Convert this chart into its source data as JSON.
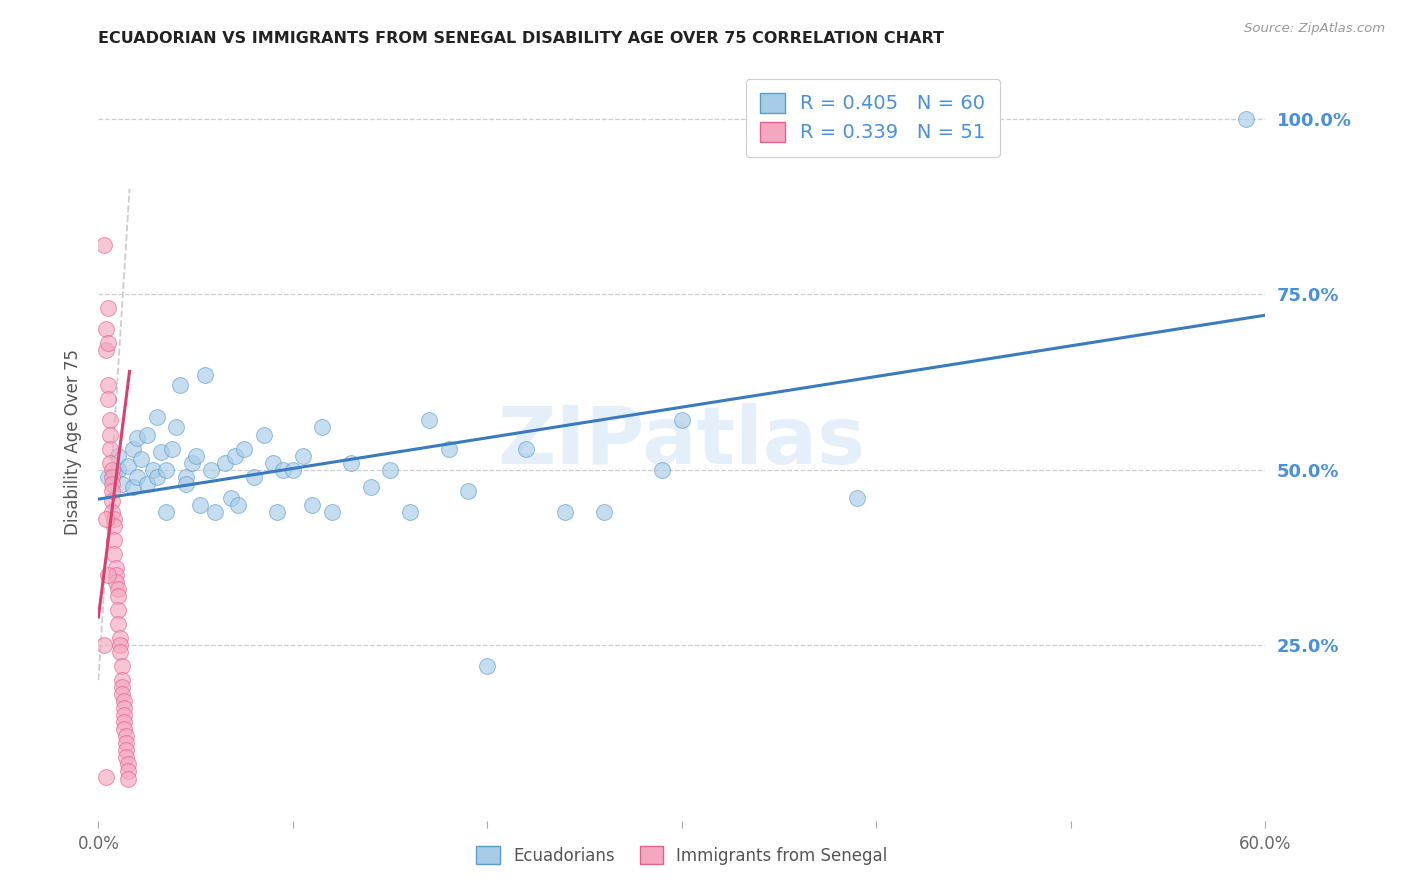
{
  "title": "ECUADORIAN VS IMMIGRANTS FROM SENEGAL DISABILITY AGE OVER 75 CORRELATION CHART",
  "source": "Source: ZipAtlas.com",
  "ylabel": "Disability Age Over 75",
  "x_min": 0.0,
  "x_max": 0.6,
  "y_min": 0.0,
  "y_max": 1.08,
  "x_ticks": [
    0.0,
    0.1,
    0.2,
    0.3,
    0.4,
    0.5,
    0.6
  ],
  "y_ticks": [
    0.0,
    0.25,
    0.5,
    0.75,
    1.0
  ],
  "y_tick_labels": [
    "",
    "25.0%",
    "50.0%",
    "75.0%",
    "100.0%"
  ],
  "watermark": "ZIPatlas",
  "legend_r1": "R = 0.405",
  "legend_n1": "N = 60",
  "legend_r2": "R = 0.339",
  "legend_n2": "N = 51",
  "blue_scatter_color": "#a8cce8",
  "blue_edge_color": "#5b9dc9",
  "pink_scatter_color": "#f4a7be",
  "pink_edge_color": "#e06090",
  "blue_line_color": "#3a7bbf",
  "pink_line_color": "#d94070",
  "ref_line_color": "#cccccc",
  "grid_color": "#cccccc",
  "right_tick_color": "#4a90d9",
  "ecuadorians_scatter": [
    [
      0.005,
      0.49
    ],
    [
      0.008,
      0.495
    ],
    [
      0.01,
      0.5
    ],
    [
      0.01,
      0.52
    ],
    [
      0.012,
      0.48
    ],
    [
      0.015,
      0.505
    ],
    [
      0.018,
      0.53
    ],
    [
      0.018,
      0.475
    ],
    [
      0.02,
      0.545
    ],
    [
      0.02,
      0.49
    ],
    [
      0.022,
      0.515
    ],
    [
      0.025,
      0.55
    ],
    [
      0.025,
      0.48
    ],
    [
      0.028,
      0.5
    ],
    [
      0.03,
      0.575
    ],
    [
      0.03,
      0.49
    ],
    [
      0.032,
      0.525
    ],
    [
      0.035,
      0.5
    ],
    [
      0.035,
      0.44
    ],
    [
      0.038,
      0.53
    ],
    [
      0.04,
      0.56
    ],
    [
      0.042,
      0.62
    ],
    [
      0.045,
      0.49
    ],
    [
      0.045,
      0.48
    ],
    [
      0.048,
      0.51
    ],
    [
      0.05,
      0.52
    ],
    [
      0.052,
      0.45
    ],
    [
      0.055,
      0.635
    ],
    [
      0.058,
      0.5
    ],
    [
      0.06,
      0.44
    ],
    [
      0.065,
      0.51
    ],
    [
      0.068,
      0.46
    ],
    [
      0.07,
      0.52
    ],
    [
      0.072,
      0.45
    ],
    [
      0.075,
      0.53
    ],
    [
      0.08,
      0.49
    ],
    [
      0.085,
      0.55
    ],
    [
      0.09,
      0.51
    ],
    [
      0.092,
      0.44
    ],
    [
      0.095,
      0.5
    ],
    [
      0.1,
      0.5
    ],
    [
      0.105,
      0.52
    ],
    [
      0.11,
      0.45
    ],
    [
      0.115,
      0.56
    ],
    [
      0.12,
      0.44
    ],
    [
      0.13,
      0.51
    ],
    [
      0.14,
      0.475
    ],
    [
      0.15,
      0.5
    ],
    [
      0.16,
      0.44
    ],
    [
      0.17,
      0.57
    ],
    [
      0.18,
      0.53
    ],
    [
      0.19,
      0.47
    ],
    [
      0.2,
      0.22
    ],
    [
      0.22,
      0.53
    ],
    [
      0.24,
      0.44
    ],
    [
      0.26,
      0.44
    ],
    [
      0.29,
      0.5
    ],
    [
      0.3,
      0.57
    ],
    [
      0.39,
      0.46
    ],
    [
      0.59,
      1.0
    ]
  ],
  "senegal_scatter": [
    [
      0.003,
      0.82
    ],
    [
      0.004,
      0.7
    ],
    [
      0.004,
      0.67
    ],
    [
      0.005,
      0.73
    ],
    [
      0.005,
      0.68
    ],
    [
      0.005,
      0.62
    ],
    [
      0.005,
      0.6
    ],
    [
      0.006,
      0.57
    ],
    [
      0.006,
      0.55
    ],
    [
      0.006,
      0.53
    ],
    [
      0.006,
      0.51
    ],
    [
      0.007,
      0.5
    ],
    [
      0.007,
      0.49
    ],
    [
      0.007,
      0.48
    ],
    [
      0.007,
      0.47
    ],
    [
      0.007,
      0.455
    ],
    [
      0.007,
      0.44
    ],
    [
      0.008,
      0.43
    ],
    [
      0.008,
      0.42
    ],
    [
      0.008,
      0.4
    ],
    [
      0.008,
      0.38
    ],
    [
      0.009,
      0.36
    ],
    [
      0.009,
      0.35
    ],
    [
      0.009,
      0.34
    ],
    [
      0.01,
      0.33
    ],
    [
      0.01,
      0.32
    ],
    [
      0.01,
      0.3
    ],
    [
      0.01,
      0.28
    ],
    [
      0.011,
      0.26
    ],
    [
      0.011,
      0.25
    ],
    [
      0.011,
      0.24
    ],
    [
      0.012,
      0.22
    ],
    [
      0.012,
      0.2
    ],
    [
      0.012,
      0.19
    ],
    [
      0.012,
      0.18
    ],
    [
      0.013,
      0.17
    ],
    [
      0.013,
      0.16
    ],
    [
      0.013,
      0.15
    ],
    [
      0.013,
      0.14
    ],
    [
      0.013,
      0.13
    ],
    [
      0.014,
      0.12
    ],
    [
      0.014,
      0.11
    ],
    [
      0.014,
      0.1
    ],
    [
      0.014,
      0.09
    ],
    [
      0.015,
      0.08
    ],
    [
      0.015,
      0.07
    ],
    [
      0.015,
      0.06
    ],
    [
      0.004,
      0.43
    ],
    [
      0.005,
      0.35
    ],
    [
      0.003,
      0.25
    ],
    [
      0.004,
      0.062
    ]
  ],
  "blue_trendline_x": [
    0.0,
    0.6
  ],
  "blue_trendline_y": [
    0.458,
    0.72
  ],
  "pink_trendline_x": [
    0.0,
    0.016
  ],
  "pink_trendline_y": [
    0.29,
    0.64
  ],
  "ref_line_x": [
    0.0,
    0.016
  ],
  "ref_line_y": [
    0.2,
    0.9
  ]
}
